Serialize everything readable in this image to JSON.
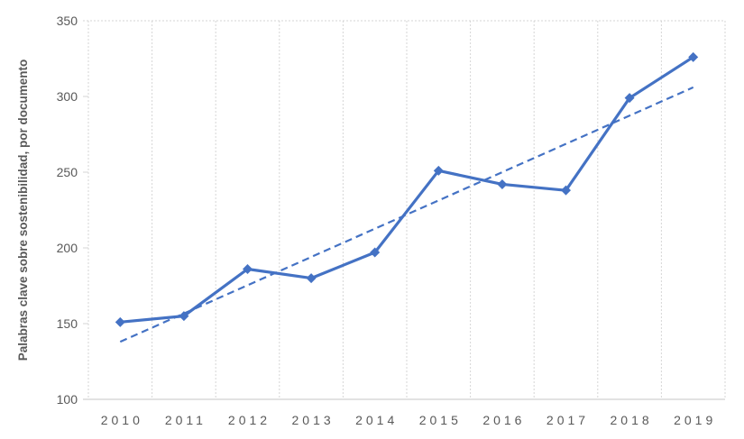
{
  "chart_data": {
    "type": "line",
    "title": "",
    "ylabel": "Palabras clave sobre sostenibilidad, por documento",
    "xlabel": "",
    "categories": [
      "2010",
      "2011",
      "2012",
      "2013",
      "2014",
      "2015",
      "2016",
      "2017",
      "2018",
      "2019"
    ],
    "series": [
      {
        "name": "Palabras clave sobre sostenibilidad, por documento",
        "values": [
          151,
          155,
          186,
          180,
          197,
          251,
          242,
          238,
          299,
          326
        ],
        "marker": "diamond",
        "line_style": "solid"
      }
    ],
    "trendline": {
      "type": "linear",
      "start_value": 138,
      "end_value": 306,
      "line_style": "dashed"
    },
    "ylim": [
      100,
      350
    ],
    "yticks": [
      100,
      150,
      200,
      250,
      300,
      350
    ],
    "grid": "vertical-category-boundaries-and-top",
    "legend_position": "none",
    "colors": {
      "series": "#4472C4",
      "trendline": "#4472C4",
      "tick_text": "#595959",
      "axis_title_text": "#595959",
      "gridline": "#D6D6D6",
      "axis_line": "#C6C6C6",
      "background": "#FFFFFF"
    }
  }
}
